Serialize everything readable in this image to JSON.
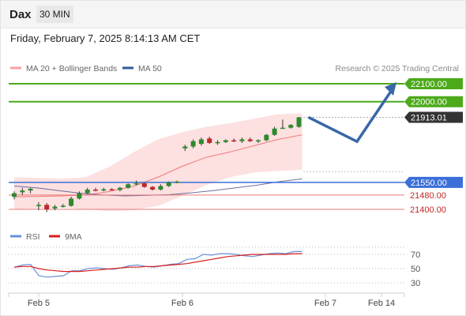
{
  "header": {
    "symbol": "Dax",
    "timeframe": "30 MIN"
  },
  "datetime": "Friday, February 7, 2025 8:14:13 AM CET",
  "credit": "Research © 2025 Trading Central",
  "colors": {
    "target": "#4caa1a",
    "current": "#333333",
    "pivot": "#3a6fd8",
    "support": "#e87a7a",
    "bb_fill": "#fde0e0",
    "ma20": "#f07a7a",
    "ma50": "#6a6f9a",
    "candle_up": "#2d8a2d",
    "candle_down": "#c42626",
    "arrow": "#3867a8",
    "rsi": "#6a8fd8",
    "rsi_ma": "#d81f1f"
  },
  "chart_data": [
    {
      "type": "candlestick",
      "legend": [
        {
          "name": "MA 20 + Bollinger Bands",
          "color": "#f5a0a0"
        },
        {
          "name": "MA 50",
          "color": "#33599a"
        }
      ],
      "levels": [
        {
          "value": 22100.0,
          "label": "22100.00",
          "kind": "target"
        },
        {
          "value": 22000.0,
          "label": "22000.00",
          "kind": "target"
        },
        {
          "value": 21913.01,
          "label": "21913.01",
          "kind": "current"
        },
        {
          "value": 21550.0,
          "label": "21550.00",
          "kind": "pivot"
        },
        {
          "value": 21480.0,
          "label": "21480.00",
          "kind": "support"
        },
        {
          "value": 21400.0,
          "label": "21400.00",
          "kind": "support"
        }
      ],
      "x_ticks": [
        "Feb 5",
        "Feb 6",
        "Feb 7",
        "Feb 14"
      ],
      "candles": [
        {
          "o": 21470,
          "h": 21500,
          "l": 21455,
          "c": 21490
        },
        {
          "o": 21495,
          "h": 21520,
          "l": 21480,
          "c": 21505
        },
        {
          "o": 21505,
          "h": 21520,
          "l": 21490,
          "c": 21515
        },
        {
          "o": 21420,
          "h": 21440,
          "l": 21395,
          "c": 21425
        },
        {
          "o": 21425,
          "h": 21435,
          "l": 21385,
          "c": 21400
        },
        {
          "o": 21405,
          "h": 21425,
          "l": 21395,
          "c": 21415
        },
        {
          "o": 21415,
          "h": 21430,
          "l": 21410,
          "c": 21420
        },
        {
          "o": 21420,
          "h": 21470,
          "l": 21415,
          "c": 21460
        },
        {
          "o": 21460,
          "h": 21500,
          "l": 21455,
          "c": 21490
        },
        {
          "o": 21490,
          "h": 21520,
          "l": 21485,
          "c": 21510
        },
        {
          "o": 21510,
          "h": 21520,
          "l": 21500,
          "c": 21505
        },
        {
          "o": 21505,
          "h": 21520,
          "l": 21500,
          "c": 21512
        },
        {
          "o": 21512,
          "h": 21518,
          "l": 21505,
          "c": 21508
        },
        {
          "o": 21508,
          "h": 21525,
          "l": 21500,
          "c": 21520
        },
        {
          "o": 21520,
          "h": 21545,
          "l": 21515,
          "c": 21540
        },
        {
          "o": 21540,
          "h": 21560,
          "l": 21535,
          "c": 21545
        },
        {
          "o": 21545,
          "h": 21550,
          "l": 21520,
          "c": 21525
        },
        {
          "o": 21525,
          "h": 21530,
          "l": 21505,
          "c": 21510
        },
        {
          "o": 21510,
          "h": 21540,
          "l": 21505,
          "c": 21530
        },
        {
          "o": 21530,
          "h": 21555,
          "l": 21525,
          "c": 21550
        },
        {
          "o": 21550,
          "h": 21560,
          "l": 21545,
          "c": 21555
        },
        {
          "o": 21740,
          "h": 21760,
          "l": 21725,
          "c": 21750
        },
        {
          "o": 21750,
          "h": 21790,
          "l": 21740,
          "c": 21780
        },
        {
          "o": 21765,
          "h": 21800,
          "l": 21755,
          "c": 21790
        },
        {
          "o": 21795,
          "h": 21805,
          "l": 21765,
          "c": 21770
        },
        {
          "o": 21770,
          "h": 21785,
          "l": 21760,
          "c": 21775
        },
        {
          "o": 21775,
          "h": 21790,
          "l": 21770,
          "c": 21785
        },
        {
          "o": 21785,
          "h": 21795,
          "l": 21775,
          "c": 21780
        },
        {
          "o": 21780,
          "h": 21800,
          "l": 21770,
          "c": 21790
        },
        {
          "o": 21790,
          "h": 21800,
          "l": 21775,
          "c": 21780
        },
        {
          "o": 21780,
          "h": 21790,
          "l": 21770,
          "c": 21785
        },
        {
          "o": 21785,
          "h": 21820,
          "l": 21780,
          "c": 21815
        },
        {
          "o": 21815,
          "h": 21860,
          "l": 21810,
          "c": 21850
        },
        {
          "o": 21850,
          "h": 21900,
          "l": 21850,
          "c": 21855
        },
        {
          "o": 21855,
          "h": 21875,
          "l": 21850,
          "c": 21870
        },
        {
          "o": 21860,
          "h": 21915,
          "l": 21855,
          "c": 21913
        }
      ],
      "bollinger": {
        "upper": [
          21580,
          21575,
          21570,
          21580,
          21640,
          21720,
          21790,
          21830,
          21860,
          21880,
          21905,
          21930,
          21935
        ],
        "lower": [
          21400,
          21405,
          21410,
          21400,
          21390,
          21395,
          21420,
          21475,
          21535,
          21580,
          21605,
          21615,
          21620
        ],
        "middle": [
          21470,
          21472,
          21475,
          21480,
          21500,
          21530,
          21580,
          21640,
          21690,
          21720,
          21755,
          21790,
          21815
        ]
      },
      "ma50": [
        21530,
        21520,
        21505,
        21490,
        21480,
        21475,
        21478,
        21482,
        21492,
        21505,
        21520,
        21535,
        21555,
        21570
      ]
    },
    {
      "type": "line",
      "title": "RSI",
      "legend": [
        {
          "name": "RSI",
          "color": "#6a8fd8"
        },
        {
          "name": "9MA",
          "color": "#d81f1f"
        }
      ],
      "y_ticks": [
        70,
        50,
        30
      ],
      "ylim": [
        20,
        90
      ],
      "rsi": [
        52,
        55,
        56,
        40,
        38,
        39,
        40,
        47,
        47,
        50,
        51,
        50,
        49,
        51,
        54,
        55,
        53,
        52,
        54,
        56,
        57,
        63,
        64,
        70,
        69,
        71,
        71,
        70,
        68,
        67,
        69,
        71,
        72,
        71,
        74,
        74
      ],
      "rsi_ma": [
        52,
        53,
        53,
        50,
        48,
        47,
        46,
        46,
        46,
        47,
        48,
        49,
        50,
        51,
        52,
        52,
        53,
        53,
        54,
        55,
        56,
        57,
        59,
        61,
        63,
        65,
        67,
        68,
        69,
        70,
        70,
        70,
        70,
        70,
        71,
        71
      ]
    }
  ]
}
